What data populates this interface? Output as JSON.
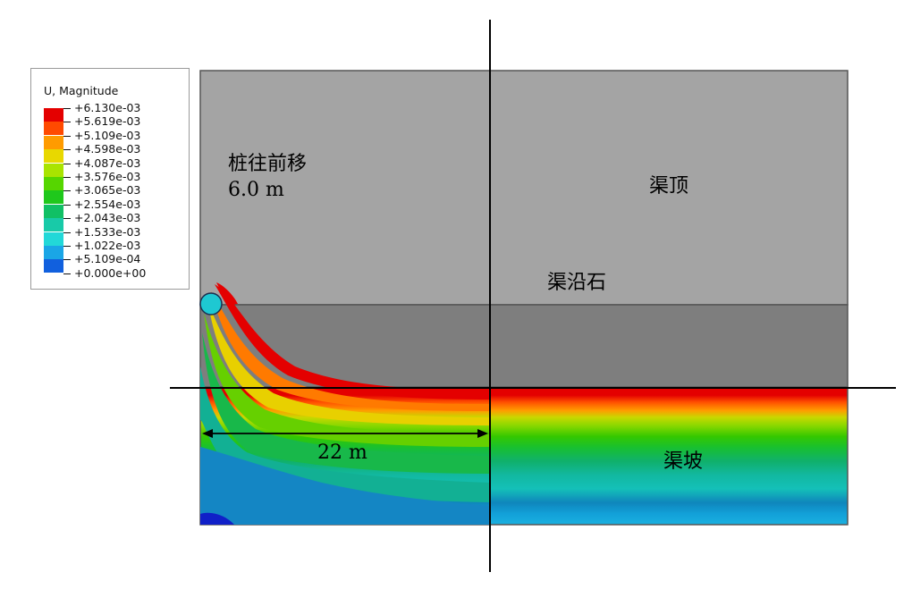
{
  "legend": {
    "title": "U, Magnitude",
    "values": [
      "+6.130e-03",
      "+5.619e-03",
      "+5.109e-03",
      "+4.598e-03",
      "+4.087e-03",
      "+3.576e-03",
      "+3.065e-03",
      "+2.554e-03",
      "+2.043e-03",
      "+1.533e-03",
      "+1.022e-03",
      "+5.109e-04",
      "+0.000e+00"
    ],
    "colors": [
      "#e40000",
      "#ff4a00",
      "#ff9b00",
      "#e8d800",
      "#a9e400",
      "#56d600",
      "#1fc81c",
      "#10c065",
      "#18caa8",
      "#22d8d8",
      "#1aa6e6",
      "#1160de",
      "#1010c8"
    ]
  },
  "labels": {
    "pile_shift": "桩往前移",
    "pile_shift_distance": "6.0 m",
    "canal_top": "渠顶",
    "canal_edge_stone": "渠沿石",
    "canal_slope": "渠坡",
    "distance": "22 m"
  },
  "colors": {
    "canal_top_fill": "#a4a4a4",
    "edge_stone_fill": "#7e7e7e",
    "outline": "#555555",
    "axis": "#000000"
  }
}
